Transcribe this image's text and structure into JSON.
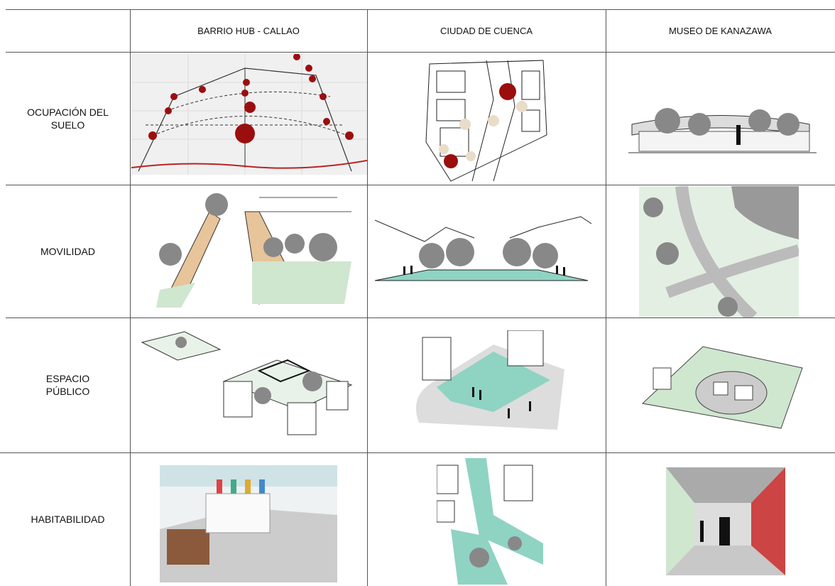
{
  "table": {
    "columns": [
      "BARRIO HUB - CALLAO",
      "CIUDAD DE CUENCA",
      "MUSEO DE KANAZAWA"
    ],
    "rows": [
      {
        "label": "OCUPACIÓN DEL SUELO"
      },
      {
        "label": "MOVILIDAD"
      },
      {
        "label": "ESPACIO PÚBLICO"
      },
      {
        "label": "HABITABILIDAD"
      }
    ]
  }
}
